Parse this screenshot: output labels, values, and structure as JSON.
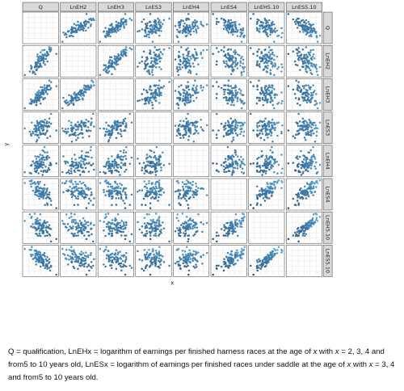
{
  "chart_data": {
    "type": "scatter",
    "variables": [
      "Q",
      "LnEH2",
      "LnEH3",
      "LnES3",
      "LnEH4",
      "LnES4",
      "LnEH5.10",
      "LnES5.10"
    ],
    "xlabel": "x",
    "ylabel": "y",
    "grid": true,
    "diagonal_panels": "empty",
    "color_scale": {
      "low": "#13345a",
      "high": "#5bb4ec"
    },
    "approx_correlations": [
      [
        1.0,
        0.85,
        0.85,
        0.3,
        0.25,
        -0.7,
        -0.55,
        -0.8
      ],
      [
        0.85,
        1.0,
        0.9,
        0.45,
        0.35,
        -0.35,
        -0.3,
        -0.45
      ],
      [
        0.85,
        0.9,
        1.0,
        0.55,
        0.4,
        -0.35,
        -0.3,
        -0.45
      ],
      [
        0.3,
        0.45,
        0.55,
        1.0,
        0.3,
        0.2,
        0.05,
        0.05
      ],
      [
        0.25,
        0.35,
        0.4,
        0.3,
        1.0,
        0.2,
        0.1,
        0.1
      ],
      [
        -0.7,
        -0.35,
        -0.35,
        0.2,
        0.2,
        1.0,
        0.75,
        0.8
      ],
      [
        -0.55,
        -0.3,
        -0.3,
        0.05,
        0.1,
        0.75,
        1.0,
        0.85
      ],
      [
        -0.8,
        -0.45,
        -0.45,
        0.05,
        0.1,
        0.8,
        0.85,
        1.0
      ]
    ],
    "points_per_panel": 90
  },
  "caption": {
    "p1": "Q = qualification, LnEHx = logarithm of earnings per finished harness races at the age of ",
    "x1": "x",
    "p2": " with ",
    "x2": "x",
    "p3": " = 2, 3, 4 and from5 to 10 years old, LnESx = logarithm of earnings per finished races under saddle at the age of ",
    "x3": "x",
    "p4": " with ",
    "x4": "x",
    "p5": " = 3, 4 and from5 to 10 years old."
  }
}
